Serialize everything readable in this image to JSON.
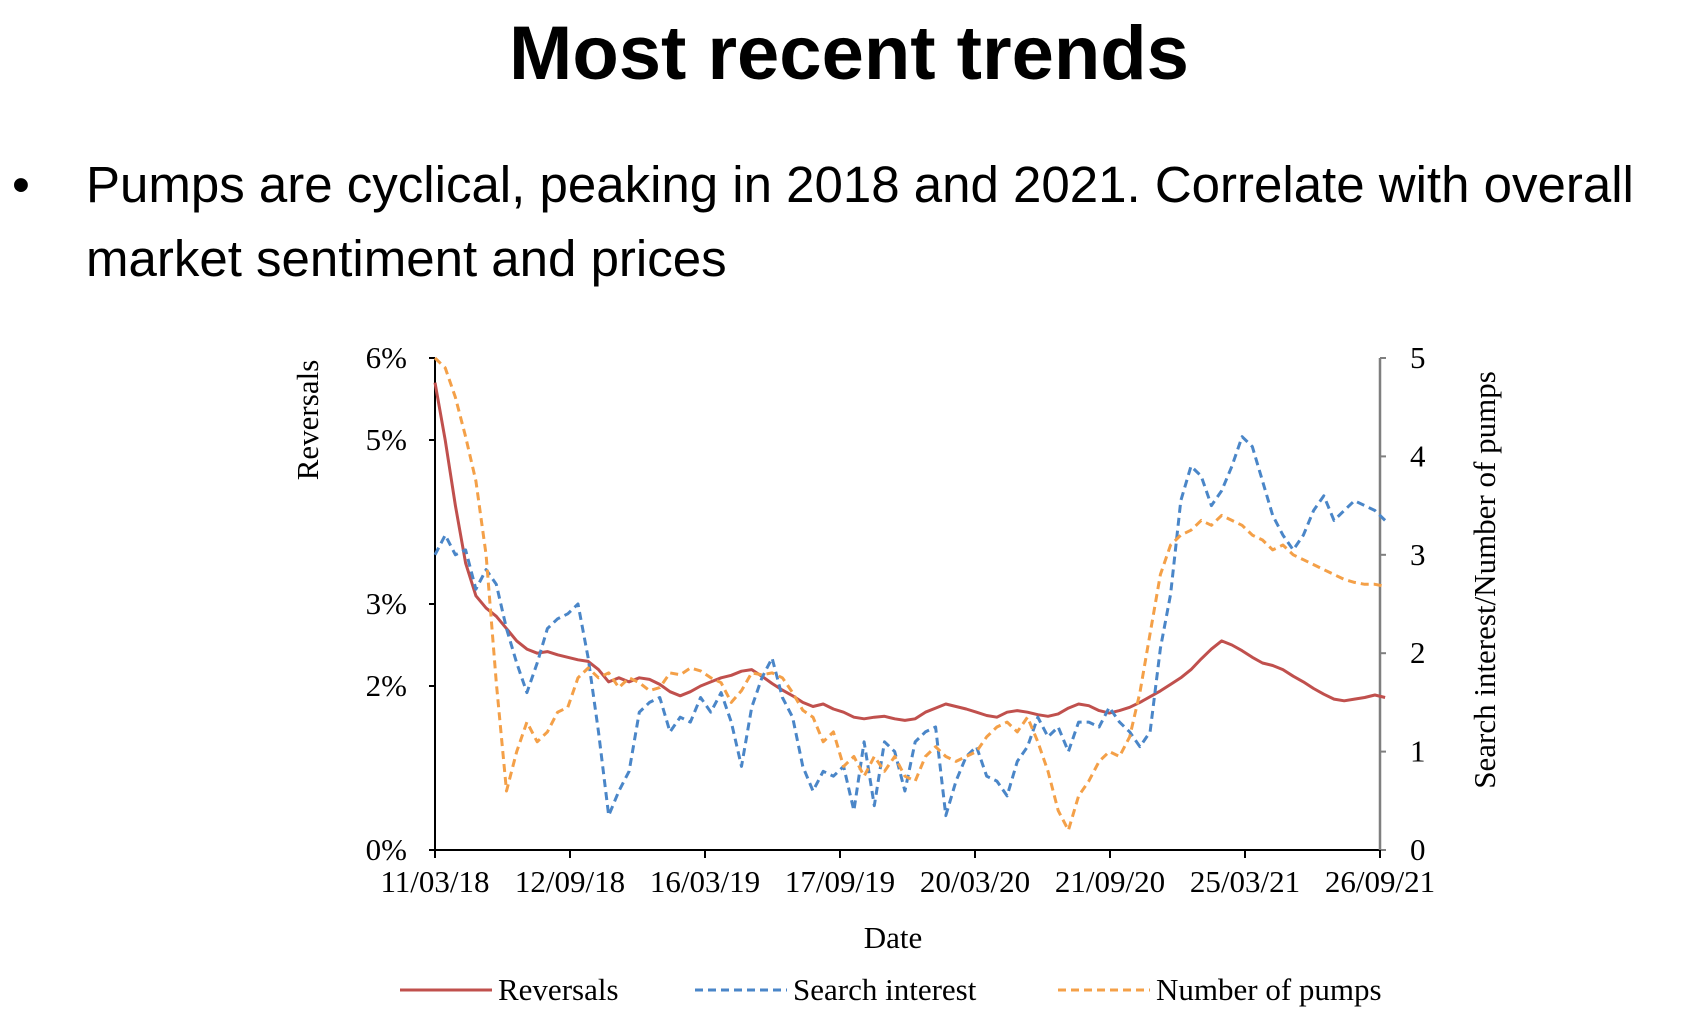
{
  "slide": {
    "title": "Most recent trends",
    "bullet_symbol": "•",
    "bullet_text": "Pumps are cyclical, peaking in 2018 and 2021. Correlate with overall market sentiment and prices"
  },
  "chart_data": {
    "type": "line",
    "title": "",
    "xlabel": "Date",
    "ylabel_left": "Reversals",
    "ylabel_right": "Search interest/Number of pumps",
    "x_tick_labels": [
      "11/03/18",
      "12/09/18",
      "16/03/19",
      "17/09/19",
      "20/03/20",
      "21/09/20",
      "25/03/21",
      "26/09/21"
    ],
    "x_tick_dates": [
      "2018-03-11",
      "2018-09-12",
      "2019-03-16",
      "2019-09-17",
      "2020-03-20",
      "2020-09-21",
      "2021-03-25",
      "2021-09-26"
    ],
    "left_axis": {
      "ticks": [
        0,
        2,
        3,
        5,
        6
      ],
      "tick_labels": [
        "0%",
        "2%",
        "3%",
        "5%",
        "6%"
      ],
      "range": [
        0,
        6
      ],
      "unit": "%"
    },
    "right_axis": {
      "ticks": [
        0,
        1,
        2,
        3,
        4,
        5
      ],
      "tick_labels": [
        "0",
        "1",
        "2",
        "3",
        "4",
        "5"
      ],
      "range": [
        0,
        5
      ]
    },
    "legend_position": "bottom",
    "grid": false,
    "series": [
      {
        "name": "Reversals",
        "axis": "left",
        "color": "#c0504d",
        "dash": "solid",
        "x": [
          "2018-03-11",
          "2018-03-25",
          "2018-04-08",
          "2018-04-22",
          "2018-05-06",
          "2018-05-20",
          "2018-06-03",
          "2018-06-17",
          "2018-07-01",
          "2018-07-15",
          "2018-07-29",
          "2018-08-12",
          "2018-08-26",
          "2018-09-09",
          "2018-09-23",
          "2018-10-07",
          "2018-10-21",
          "2018-11-04",
          "2018-11-18",
          "2018-12-02",
          "2018-12-16",
          "2018-12-30",
          "2019-01-13",
          "2019-01-27",
          "2019-02-10",
          "2019-02-24",
          "2019-03-10",
          "2019-03-24",
          "2019-04-07",
          "2019-04-21",
          "2019-05-05",
          "2019-05-19",
          "2019-06-02",
          "2019-06-16",
          "2019-06-30",
          "2019-07-14",
          "2019-07-28",
          "2019-08-11",
          "2019-08-25",
          "2019-09-08",
          "2019-09-22",
          "2019-10-06",
          "2019-10-20",
          "2019-11-03",
          "2019-11-17",
          "2019-12-01",
          "2019-12-15",
          "2019-12-29",
          "2020-01-12",
          "2020-01-26",
          "2020-02-09",
          "2020-02-23",
          "2020-03-08",
          "2020-03-22",
          "2020-04-05",
          "2020-04-19",
          "2020-05-03",
          "2020-05-17",
          "2020-05-31",
          "2020-06-14",
          "2020-06-28",
          "2020-07-12",
          "2020-07-26",
          "2020-08-09",
          "2020-08-23",
          "2020-09-06",
          "2020-09-20",
          "2020-10-04",
          "2020-10-18",
          "2020-11-01",
          "2020-11-15",
          "2020-11-29",
          "2020-12-13",
          "2020-12-27",
          "2021-01-10",
          "2021-01-24",
          "2021-02-07",
          "2021-02-21",
          "2021-03-07",
          "2021-03-21",
          "2021-04-04",
          "2021-04-18",
          "2021-05-02",
          "2021-05-16",
          "2021-05-30",
          "2021-06-13",
          "2021-06-27",
          "2021-07-11",
          "2021-07-25",
          "2021-08-08",
          "2021-08-22",
          "2021-09-05",
          "2021-09-19",
          "2021-10-03"
        ],
        "values": [
          5.7,
          5.0,
          4.2,
          3.5,
          3.1,
          2.95,
          2.85,
          2.7,
          2.55,
          2.45,
          2.4,
          2.42,
          2.38,
          2.35,
          2.32,
          2.3,
          2.2,
          2.05,
          2.1,
          2.05,
          2.1,
          2.08,
          2.02,
          1.93,
          1.88,
          1.93,
          2.0,
          2.05,
          2.1,
          2.13,
          2.18,
          2.2,
          2.12,
          2.03,
          1.95,
          1.88,
          1.8,
          1.75,
          1.78,
          1.72,
          1.68,
          1.62,
          1.6,
          1.62,
          1.63,
          1.6,
          1.58,
          1.6,
          1.68,
          1.73,
          1.78,
          1.75,
          1.72,
          1.68,
          1.64,
          1.62,
          1.68,
          1.7,
          1.68,
          1.65,
          1.63,
          1.66,
          1.73,
          1.78,
          1.76,
          1.7,
          1.67,
          1.7,
          1.74,
          1.8,
          1.87,
          1.94,
          2.02,
          2.1,
          2.2,
          2.33,
          2.45,
          2.55,
          2.5,
          2.43,
          2.35,
          2.28,
          2.25,
          2.2,
          2.12,
          2.05,
          1.97,
          1.9,
          1.84,
          1.82,
          1.84,
          1.86,
          1.89,
          1.86
        ]
      },
      {
        "name": "Search interest",
        "axis": "right",
        "color": "#4a86c8",
        "dash": "dashed",
        "x": [
          "2018-03-11",
          "2018-03-25",
          "2018-04-08",
          "2018-04-22",
          "2018-05-06",
          "2018-05-20",
          "2018-06-03",
          "2018-06-17",
          "2018-07-01",
          "2018-07-15",
          "2018-07-29",
          "2018-08-12",
          "2018-08-26",
          "2018-09-09",
          "2018-09-23",
          "2018-10-07",
          "2018-10-21",
          "2018-11-04",
          "2018-11-18",
          "2018-12-02",
          "2018-12-16",
          "2018-12-30",
          "2019-01-13",
          "2019-01-27",
          "2019-02-10",
          "2019-02-24",
          "2019-03-10",
          "2019-03-24",
          "2019-04-07",
          "2019-04-21",
          "2019-05-05",
          "2019-05-19",
          "2019-06-02",
          "2019-06-16",
          "2019-06-30",
          "2019-07-14",
          "2019-07-28",
          "2019-08-11",
          "2019-08-25",
          "2019-09-08",
          "2019-09-22",
          "2019-10-06",
          "2019-10-20",
          "2019-11-03",
          "2019-11-17",
          "2019-12-01",
          "2019-12-15",
          "2019-12-29",
          "2020-01-12",
          "2020-01-26",
          "2020-02-09",
          "2020-02-23",
          "2020-03-08",
          "2020-03-22",
          "2020-04-05",
          "2020-04-19",
          "2020-05-03",
          "2020-05-17",
          "2020-05-31",
          "2020-06-14",
          "2020-06-28",
          "2020-07-12",
          "2020-07-26",
          "2020-08-09",
          "2020-08-23",
          "2020-09-06",
          "2020-09-20",
          "2020-10-04",
          "2020-10-18",
          "2020-11-01",
          "2020-11-15",
          "2020-11-29",
          "2020-12-13",
          "2020-12-27",
          "2021-01-10",
          "2021-01-24",
          "2021-02-07",
          "2021-02-21",
          "2021-03-07",
          "2021-03-21",
          "2021-04-04",
          "2021-04-18",
          "2021-05-02",
          "2021-05-16",
          "2021-05-30",
          "2021-06-13",
          "2021-06-27",
          "2021-07-11",
          "2021-07-25",
          "2021-08-08",
          "2021-08-22",
          "2021-09-05",
          "2021-09-19",
          "2021-10-03"
        ],
        "values": [
          3.0,
          3.2,
          3.0,
          3.05,
          2.65,
          2.85,
          2.7,
          2.25,
          1.9,
          1.6,
          1.9,
          2.25,
          2.35,
          2.4,
          2.5,
          1.95,
          1.2,
          0.35,
          0.6,
          0.8,
          1.4,
          1.5,
          1.55,
          1.2,
          1.35,
          1.3,
          1.55,
          1.4,
          1.6,
          1.3,
          0.85,
          1.45,
          1.75,
          1.95,
          1.55,
          1.35,
          0.85,
          0.6,
          0.8,
          0.75,
          0.85,
          0.4,
          1.1,
          0.45,
          1.1,
          1.0,
          0.6,
          1.1,
          1.2,
          1.25,
          0.35,
          0.7,
          0.95,
          1.05,
          0.75,
          0.7,
          0.55,
          0.9,
          1.05,
          1.35,
          1.15,
          1.25,
          1.0,
          1.3,
          1.3,
          1.25,
          1.45,
          1.3,
          1.2,
          1.05,
          1.2,
          2.05,
          2.6,
          3.55,
          3.9,
          3.8,
          3.5,
          3.65,
          3.9,
          4.2,
          4.1,
          3.75,
          3.4,
          3.2,
          3.05,
          3.2,
          3.45,
          3.6,
          3.35,
          3.45,
          3.55,
          3.5,
          3.45,
          3.35
        ]
      },
      {
        "name": "Number of pumps",
        "axis": "right",
        "color": "#f4a048",
        "dash": "dashed",
        "x": [
          "2018-03-11",
          "2018-03-25",
          "2018-04-08",
          "2018-04-22",
          "2018-05-06",
          "2018-05-20",
          "2018-06-03",
          "2018-06-17",
          "2018-07-01",
          "2018-07-15",
          "2018-07-29",
          "2018-08-12",
          "2018-08-26",
          "2018-09-09",
          "2018-09-23",
          "2018-10-07",
          "2018-10-21",
          "2018-11-04",
          "2018-11-18",
          "2018-12-02",
          "2018-12-16",
          "2018-12-30",
          "2019-01-13",
          "2019-01-27",
          "2019-02-10",
          "2019-02-24",
          "2019-03-10",
          "2019-03-24",
          "2019-04-07",
          "2019-04-21",
          "2019-05-05",
          "2019-05-19",
          "2019-06-02",
          "2019-06-16",
          "2019-06-30",
          "2019-07-14",
          "2019-07-28",
          "2019-08-11",
          "2019-08-25",
          "2019-09-08",
          "2019-09-22",
          "2019-10-06",
          "2019-10-20",
          "2019-11-03",
          "2019-11-17",
          "2019-12-01",
          "2019-12-15",
          "2019-12-29",
          "2020-01-12",
          "2020-01-26",
          "2020-02-09",
          "2020-02-23",
          "2020-03-08",
          "2020-03-22",
          "2020-04-05",
          "2020-04-19",
          "2020-05-03",
          "2020-05-17",
          "2020-05-31",
          "2020-06-14",
          "2020-06-28",
          "2020-07-12",
          "2020-07-26",
          "2020-08-09",
          "2020-08-23",
          "2020-09-06",
          "2020-09-20",
          "2020-10-04",
          "2020-10-18",
          "2020-11-01",
          "2020-11-15",
          "2020-11-29",
          "2020-12-13",
          "2020-12-27",
          "2021-01-10",
          "2021-01-24",
          "2021-02-07",
          "2021-02-21",
          "2021-03-07",
          "2021-03-21",
          "2021-04-04",
          "2021-04-18",
          "2021-05-02",
          "2021-05-16",
          "2021-05-30",
          "2021-06-13",
          "2021-06-27",
          "2021-07-11",
          "2021-07-25",
          "2021-08-08",
          "2021-08-22",
          "2021-09-05",
          "2021-09-19",
          "2021-10-03"
        ],
        "values": [
          5.0,
          4.9,
          4.6,
          4.2,
          3.75,
          3.0,
          1.7,
          0.6,
          1.0,
          1.3,
          1.1,
          1.2,
          1.4,
          1.45,
          1.75,
          1.85,
          1.75,
          1.8,
          1.65,
          1.75,
          1.7,
          1.62,
          1.65,
          1.8,
          1.78,
          1.85,
          1.82,
          1.75,
          1.7,
          1.5,
          1.62,
          1.8,
          1.78,
          1.8,
          1.75,
          1.6,
          1.42,
          1.35,
          1.1,
          1.2,
          0.85,
          0.95,
          0.75,
          0.95,
          0.8,
          0.95,
          0.75,
          0.7,
          0.95,
          1.05,
          0.95,
          0.9,
          0.95,
          1.0,
          1.15,
          1.25,
          1.3,
          1.2,
          1.35,
          1.1,
          0.8,
          0.4,
          0.2,
          0.55,
          0.7,
          0.9,
          1.0,
          0.95,
          1.15,
          1.6,
          2.2,
          2.8,
          3.1,
          3.2,
          3.25,
          3.35,
          3.3,
          3.4,
          3.35,
          3.3,
          3.2,
          3.15,
          3.05,
          3.1,
          3.0,
          2.95,
          2.9,
          2.85,
          2.8,
          2.75,
          2.72,
          2.7,
          2.7,
          2.68
        ]
      }
    ]
  }
}
